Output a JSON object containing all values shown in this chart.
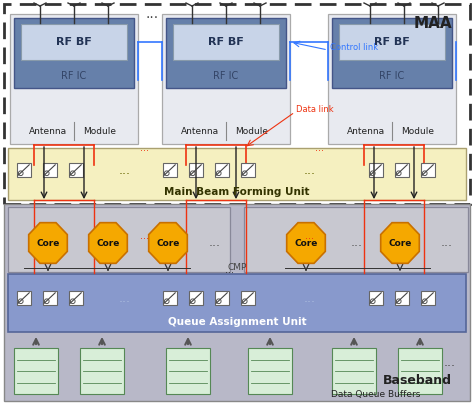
{
  "fig_width": 4.74,
  "fig_height": 4.05,
  "dpi": 100,
  "bg_color": "#ffffff",
  "maa_label": "MAA",
  "baseband_label": "Baseband",
  "mbf_label": "Main Beam Forming Unit",
  "qau_label": "Queue Assignment Unit",
  "cmp_label": "CMP",
  "control_link_label": "Control link",
  "data_link_label": "Data link",
  "dqb_label": "Data Queue Buffers",
  "rf_bf_label": "RF BF",
  "rf_ic_label": "RF IC",
  "antenna_label": "Antenna",
  "module_label": "Module",
  "core_label": "Core",
  "dots": "...",
  "control_link_color": "#3377ff",
  "data_link_color": "#ee3311",
  "arrow_color": "#444444",
  "maa_bg": "#ffffff",
  "baseband_bg": "#b8b8c8",
  "mbf_bg": "#f5f0c0",
  "qau_bg": "#8899cc",
  "cmp_bg": "#c8c8d0",
  "module_bg": "#dde0ee",
  "rfbf_bg": "#8899bb",
  "rfbf_inner_bg": "#c8d4e8",
  "switch_bg": "#ffffff",
  "core_color": "#f5a800",
  "core_edge": "#c87000",
  "buf_bg": "#d8eed8",
  "buf_edge": "#558855"
}
